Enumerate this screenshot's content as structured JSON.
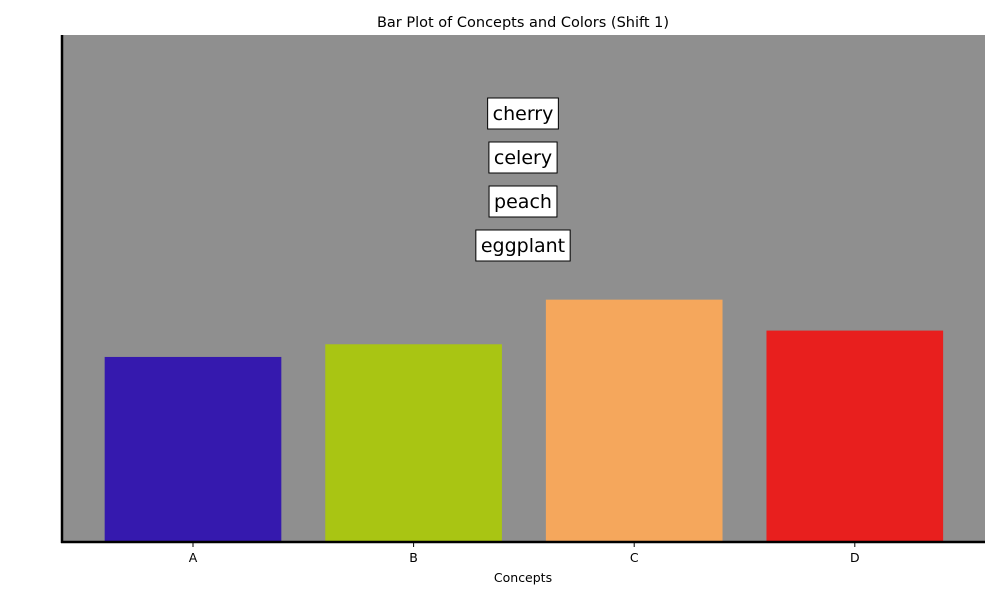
{
  "chart_data": {
    "type": "bar",
    "title": "Bar Plot of Concepts and Colors (Shift 1)",
    "xlabel": "Concepts",
    "ylabel": "",
    "categories": [
      "A",
      "B",
      "C",
      "D"
    ],
    "values": [
      3.65,
      3.9,
      4.78,
      4.17
    ],
    "bar_colors": [
      "#3519ae",
      "#a9c513",
      "#f5a75c",
      "#e81f1e"
    ],
    "ylim": [
      0,
      10
    ],
    "plot_background": "#8f8f8f",
    "grid": false,
    "y_ticks_visible": false,
    "annotations": [
      "cherry",
      "celery",
      "peach",
      "eggplant"
    ]
  }
}
